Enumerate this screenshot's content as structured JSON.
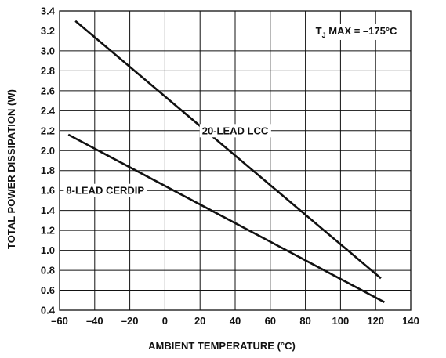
{
  "chart_data": {
    "type": "line",
    "xlabel": "AMBIENT TEMPERATURE (°C)",
    "ylabel": "TOTAL POWER DISSIPATION (W)",
    "xlim": [
      -60,
      140
    ],
    "ylim": [
      0.4,
      3.4
    ],
    "x_ticks": [
      -60,
      -40,
      -20,
      0,
      20,
      40,
      60,
      80,
      100,
      120,
      140
    ],
    "x_tick_labels": [
      "–60",
      "–40",
      "–20",
      "0",
      "20",
      "40",
      "60",
      "80",
      "100",
      "120",
      "140"
    ],
    "y_ticks": [
      0.4,
      0.6,
      0.8,
      1.0,
      1.2,
      1.4,
      1.6,
      1.8,
      2.0,
      2.2,
      2.4,
      2.6,
      2.8,
      3.0,
      3.2,
      3.4
    ],
    "y_tick_labels": [
      "0.4",
      "0.6",
      "0.8",
      "1.0",
      "1.2",
      "1.4",
      "1.6",
      "1.8",
      "2.0",
      "2.2",
      "2.4",
      "2.6",
      "2.8",
      "3.0",
      "3.2",
      "3.4"
    ],
    "grid": true,
    "line_color": "#111111",
    "series": [
      {
        "name": "20-LEAD LCC",
        "x": [
          -51,
          123
        ],
        "y": [
          3.3,
          0.72
        ]
      },
      {
        "name": "8-LEAD CERDIP",
        "x": [
          -55,
          125
        ],
        "y": [
          2.16,
          0.48
        ]
      }
    ],
    "annotations": [
      {
        "text": "20-LEAD LCC",
        "x": 40,
        "y": 2.2
      },
      {
        "text": "8-LEAD CERDIP",
        "x": -34,
        "y": 1.6
      },
      {
        "text_main": "T",
        "text_sub": "J",
        "text_rest": " MAX = –175°C",
        "x": 109,
        "y": 3.2
      }
    ]
  }
}
